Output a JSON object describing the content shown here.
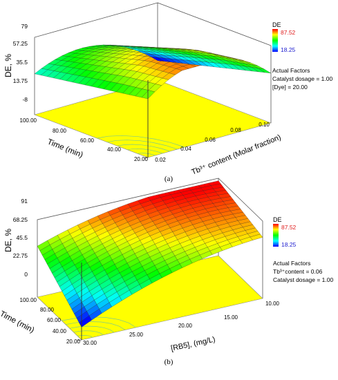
{
  "chart_data": [
    {
      "type": "surface3d",
      "panel_label": "(a)",
      "zlabel": "DE, %",
      "z_ticks": [
        "79",
        "57.25",
        "35.5",
        "13.75",
        "-8"
      ],
      "zlim": [
        -8,
        79
      ],
      "xlabel": "Tb³⁺ content (Molar fraction)",
      "x_ticks": [
        "0.02",
        "0.04",
        "0.06",
        "0.08",
        "0.10"
      ],
      "xlim": [
        0.02,
        0.1
      ],
      "ylabel": "Time (min)",
      "y_ticks": [
        "20.00",
        "40.00",
        "60.00",
        "80.00",
        "100.00"
      ],
      "ylim": [
        20,
        100
      ],
      "legend": {
        "title": "DE",
        "max_label": "87.52",
        "min_label": "18.25",
        "max": 87.52,
        "min": 18.25
      },
      "actual_factors": {
        "title": "Actual Factors",
        "lines": [
          "Catalyst dosage = 1.00",
          "[Dye] = 20.00"
        ]
      },
      "surface_corners": {
        "x_min_y_min": 58,
        "x_min_y_max": 38,
        "x_max_y_min": 48,
        "x_max_y_max": 14,
        "peak": 79
      }
    },
    {
      "type": "surface3d",
      "panel_label": "(b)",
      "zlabel": "DE, %",
      "z_ticks": [
        "91",
        "68.25",
        "45.5",
        "22.75",
        "0"
      ],
      "zlim": [
        0,
        91
      ],
      "xlabel": "[RB5], (mg/L)",
      "x_ticks": [
        "30.00",
        "25.00",
        "20.00",
        "15.00",
        "10.00"
      ],
      "xlim": [
        30,
        10
      ],
      "ylabel": "Time (min)",
      "y_ticks": [
        "20.00",
        "40.00",
        "60.00",
        "80.00",
        "100.00"
      ],
      "ylim": [
        20,
        100
      ],
      "legend": {
        "title": "DE",
        "max_label": "87.52",
        "min_label": "18.25",
        "max": 87.52,
        "min": 18.25
      },
      "actual_factors": {
        "title": "Actual Factors",
        "lines": [
          "Tb³⁺content = 0.06",
          "Catalyst dosage = 1.00"
        ]
      },
      "surface_corners": {
        "x_min_y_min": 15,
        "x_min_y_max": 60,
        "x_max_y_min": 72,
        "x_max_y_max": 88,
        "peak": 88
      }
    }
  ]
}
